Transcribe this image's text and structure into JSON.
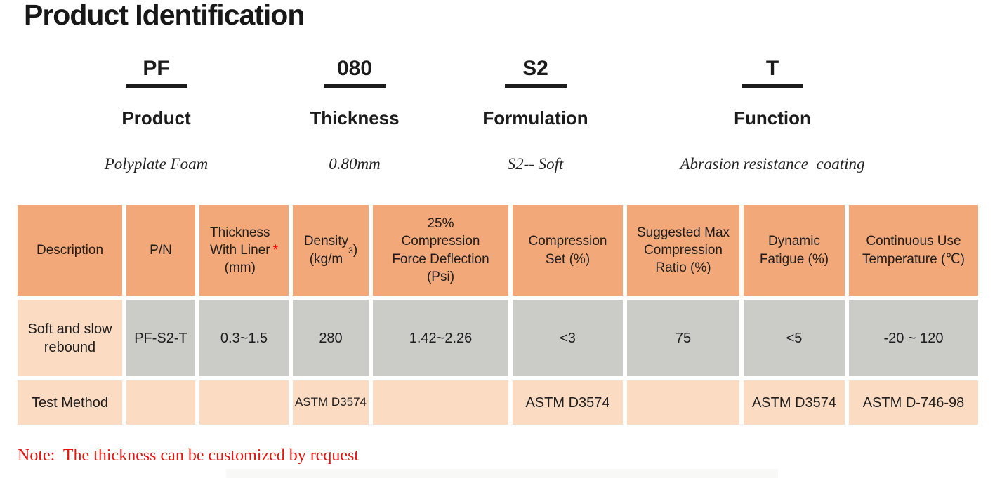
{
  "page": {
    "title": "Product Identification",
    "note": "Note:  The thickness can be customized by request"
  },
  "colors": {
    "header_bg": "#f2a878",
    "data_row_bg": "#cbcbc8",
    "accent_row_bg": "#fbdcc2",
    "note_red": "#e8140f",
    "asterisk_red": "#ff0000"
  },
  "segments": [
    {
      "code": "PF",
      "label": "Product",
      "description": "Polyplate Foam"
    },
    {
      "code": "080",
      "label": "Thickness",
      "description": "0.80mm"
    },
    {
      "code": "S2",
      "label": "Formulation",
      "description": "S2-- Soft"
    },
    {
      "code": "T",
      "label": "Function",
      "description": "Abrasion resistance  coating"
    }
  ],
  "table": {
    "headers": {
      "description": "Description",
      "pn": "P/N",
      "thickness": "Thickness\nWith Liner\n(mm)",
      "thickness_asterisk": "*",
      "density_prefix": "Density\n(kg/m",
      "density_sup": "3",
      "density_suffix": ")",
      "cfd": "25%\nCompression\nForce Deflection\n(Psi)",
      "compression_set": "Compression\nSet (%)",
      "suggested_max": "Suggested Max\nCompression\nRatio (%)",
      "dynamic_fatigue": "Dynamic\nFatigue (%)",
      "continuous_temp": "Continuous Use\nTemperature (℃)"
    },
    "product_row": {
      "description": "Soft and slow\nrebound",
      "pn": "PF-S2-T",
      "thickness": "0.3~1.5",
      "density": "280",
      "cfd": "1.42~2.26",
      "compression_set": "<3",
      "suggested_max": "75",
      "dynamic_fatigue": "<5",
      "continuous_temp": "-20 ~ 120"
    },
    "test_row": {
      "description": "Test Method",
      "pn": "",
      "thickness": "",
      "density": "ASTM D3574",
      "cfd": "",
      "compression_set": "ASTM D3574",
      "suggested_max": "",
      "dynamic_fatigue": "ASTM D3574",
      "continuous_temp": "ASTM D-746-98"
    }
  }
}
